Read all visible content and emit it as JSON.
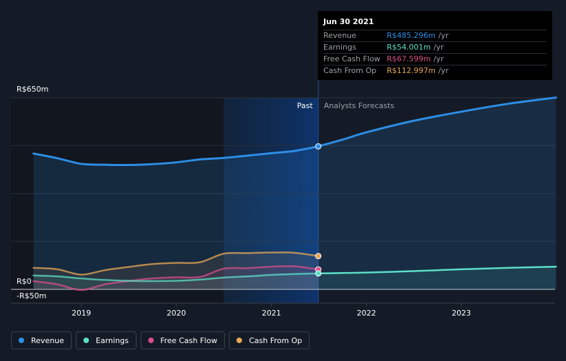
{
  "chart_data": {
    "type": "line",
    "x_ticks": [
      "2019",
      "2020",
      "2021",
      "2022",
      "2023"
    ],
    "ylim": [
      -50,
      650
    ],
    "y_labels": [
      "R$650m",
      "R$0",
      "-R$50m"
    ],
    "divider_labels": {
      "past": "Past",
      "forecast": "Analysts Forecasts"
    },
    "series": [
      {
        "name": "Revenue",
        "color": "#2d8ee6",
        "fill": true,
        "points": [
          [
            "2018-07-01",
            461
          ],
          [
            "2018-10-01",
            445
          ],
          [
            "2019-01-01",
            426
          ],
          [
            "2019-04-01",
            423
          ],
          [
            "2019-07-01",
            422
          ],
          [
            "2019-10-01",
            425
          ],
          [
            "2020-01-01",
            431
          ],
          [
            "2020-04-01",
            441
          ],
          [
            "2020-07-01",
            446
          ],
          [
            "2020-10-01",
            454
          ],
          [
            "2021-01-01",
            462
          ],
          [
            "2021-04-01",
            470
          ],
          [
            "2021-06-30",
            485.296
          ],
          [
            "2021-10-01",
            508
          ],
          [
            "2022-01-01",
            533
          ],
          [
            "2022-07-01",
            572
          ],
          [
            "2023-01-01",
            603
          ],
          [
            "2023-07-01",
            630
          ],
          [
            "2023-12-31",
            651
          ]
        ]
      },
      {
        "name": "Earnings",
        "color": "#5ce0c8",
        "points": [
          [
            "2018-07-01",
            47
          ],
          [
            "2018-10-01",
            44
          ],
          [
            "2019-01-01",
            37
          ],
          [
            "2019-04-01",
            32
          ],
          [
            "2019-07-01",
            29
          ],
          [
            "2019-10-01",
            28
          ],
          [
            "2020-01-01",
            29
          ],
          [
            "2020-04-01",
            33
          ],
          [
            "2020-07-01",
            40
          ],
          [
            "2020-10-01",
            44
          ],
          [
            "2021-01-01",
            49
          ],
          [
            "2021-04-01",
            52
          ],
          [
            "2021-06-30",
            54.001
          ],
          [
            "2022-01-01",
            57
          ],
          [
            "2022-07-01",
            62
          ],
          [
            "2023-01-01",
            68
          ],
          [
            "2023-07-01",
            73
          ],
          [
            "2023-12-31",
            77
          ]
        ]
      },
      {
        "name": "Free Cash Flow",
        "color": "#d94f8a",
        "points": [
          [
            "2018-07-01",
            28
          ],
          [
            "2018-10-01",
            17
          ],
          [
            "2019-01-01",
            -2
          ],
          [
            "2019-04-01",
            17
          ],
          [
            "2019-07-01",
            28
          ],
          [
            "2019-10-01",
            37
          ],
          [
            "2020-01-01",
            41
          ],
          [
            "2020-04-01",
            42
          ],
          [
            "2020-07-01",
            70
          ],
          [
            "2020-10-01",
            72
          ],
          [
            "2021-01-01",
            77
          ],
          [
            "2021-04-01",
            78
          ],
          [
            "2021-06-30",
            67.599
          ]
        ]
      },
      {
        "name": "Cash From Op",
        "color": "#e8a857",
        "points": [
          [
            "2018-07-01",
            73
          ],
          [
            "2018-10-01",
            68
          ],
          [
            "2019-01-01",
            50
          ],
          [
            "2019-04-01",
            65
          ],
          [
            "2019-07-01",
            76
          ],
          [
            "2019-10-01",
            86
          ],
          [
            "2020-01-01",
            90
          ],
          [
            "2020-04-01",
            92
          ],
          [
            "2020-07-01",
            121
          ],
          [
            "2020-10-01",
            123
          ],
          [
            "2021-01-01",
            125
          ],
          [
            "2021-04-01",
            124
          ],
          [
            "2021-06-30",
            112.997
          ]
        ]
      }
    ],
    "tooltip": {
      "date": "Jun 30 2021",
      "rows": [
        {
          "name": "Revenue",
          "value": "R$485.296m",
          "unit": "/yr",
          "color": "#2d8ee6"
        },
        {
          "name": "Earnings",
          "value": "R$54.001m",
          "unit": "/yr",
          "color": "#5ce0c8"
        },
        {
          "name": "Free Cash Flow",
          "value": "R$67.599m",
          "unit": "/yr",
          "color": "#d94f8a"
        },
        {
          "name": "Cash From Op",
          "value": "R$112.997m",
          "unit": "/yr",
          "color": "#e8a857"
        }
      ]
    }
  },
  "legend": [
    {
      "label": "Revenue",
      "color": "#2d8ee6"
    },
    {
      "label": "Earnings",
      "color": "#5ce0c8"
    },
    {
      "label": "Free Cash Flow",
      "color": "#d94f8a"
    },
    {
      "label": "Cash From Op",
      "color": "#e8a857"
    }
  ]
}
